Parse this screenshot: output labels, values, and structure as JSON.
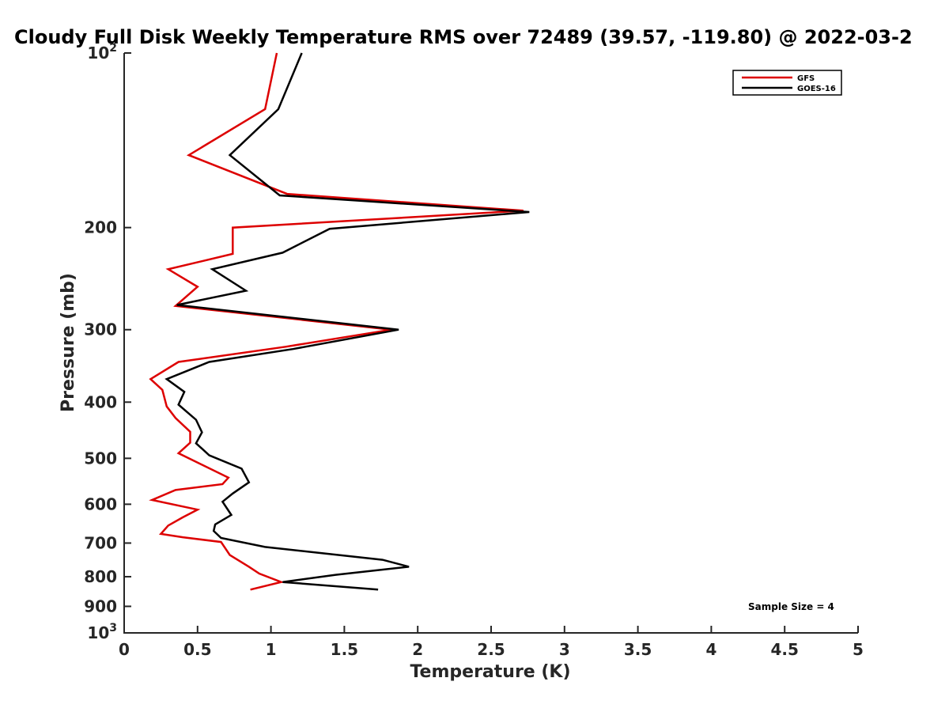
{
  "chart_data": {
    "type": "line",
    "title": "Cloudy Full Disk Weekly Temperature RMS over 72489 (39.57, -119.80) @ 2022-03-2",
    "xlabel": "Temperature (K)",
    "ylabel": "Pressure (mb)",
    "xlim": [
      0,
      5
    ],
    "ylim": [
      100,
      1000
    ],
    "y_scale": "log",
    "y_reversed": true,
    "x_ticks": [
      "0",
      "0.5",
      "1",
      "1.5",
      "2",
      "2.5",
      "3",
      "3.5",
      "4",
      "4.5",
      "5"
    ],
    "y_ticks": [
      {
        "value": 100,
        "label": "10",
        "sup": "2"
      },
      {
        "value": 200,
        "label": "200",
        "sup": ""
      },
      {
        "value": 300,
        "label": "300",
        "sup": ""
      },
      {
        "value": 400,
        "label": "400",
        "sup": ""
      },
      {
        "value": 500,
        "label": "500",
        "sup": ""
      },
      {
        "value": 600,
        "label": "600",
        "sup": ""
      },
      {
        "value": 700,
        "label": "700",
        "sup": ""
      },
      {
        "value": 800,
        "label": "800",
        "sup": ""
      },
      {
        "value": 900,
        "label": "900",
        "sup": ""
      },
      {
        "value": 1000,
        "label": "10",
        "sup": "3"
      }
    ],
    "grid": false,
    "legend_position": "top-right",
    "annotation": "Sample Size = 4",
    "series": [
      {
        "name": "GFS",
        "color": "#dd0000",
        "points": [
          [
            1.04,
            100
          ],
          [
            0.96,
            125
          ],
          [
            0.44,
            150
          ],
          [
            1.11,
            175
          ],
          [
            2.72,
            187
          ],
          [
            0.74,
            200
          ],
          [
            0.74,
            222
          ],
          [
            0.3,
            236
          ],
          [
            0.5,
            253
          ],
          [
            0.35,
            273
          ],
          [
            1.82,
            300
          ],
          [
            1.1,
            321
          ],
          [
            0.37,
            341
          ],
          [
            0.18,
            365
          ],
          [
            0.26,
            381
          ],
          [
            0.29,
            407
          ],
          [
            0.35,
            426
          ],
          [
            0.45,
            450
          ],
          [
            0.45,
            470
          ],
          [
            0.37,
            490
          ],
          [
            0.71,
            540
          ],
          [
            0.67,
            554
          ],
          [
            0.35,
            567
          ],
          [
            0.19,
            590
          ],
          [
            0.5,
            613
          ],
          [
            0.4,
            632
          ],
          [
            0.3,
            653
          ],
          [
            0.25,
            675
          ],
          [
            0.4,
            684
          ],
          [
            0.66,
            697
          ],
          [
            0.72,
            734
          ],
          [
            0.85,
            769
          ],
          [
            0.92,
            790
          ],
          [
            1.07,
            817
          ],
          [
            0.86,
            842
          ]
        ]
      },
      {
        "name": "GOES-16",
        "color": "#000000",
        "points": [
          [
            1.21,
            100
          ],
          [
            1.05,
            125
          ],
          [
            0.72,
            150
          ],
          [
            1.06,
            176
          ],
          [
            2.76,
            188
          ],
          [
            1.4,
            201
          ],
          [
            1.08,
            221
          ],
          [
            0.6,
            236
          ],
          [
            0.83,
            257
          ],
          [
            0.36,
            272
          ],
          [
            1.87,
            300
          ],
          [
            1.15,
            324
          ],
          [
            0.58,
            341
          ],
          [
            0.29,
            365
          ],
          [
            0.41,
            384
          ],
          [
            0.37,
            404
          ],
          [
            0.49,
            429
          ],
          [
            0.53,
            451
          ],
          [
            0.49,
            471
          ],
          [
            0.58,
            494
          ],
          [
            0.8,
            521
          ],
          [
            0.85,
            550
          ],
          [
            0.74,
            575
          ],
          [
            0.67,
            594
          ],
          [
            0.73,
            626
          ],
          [
            0.62,
            650
          ],
          [
            0.61,
            667
          ],
          [
            0.66,
            686
          ],
          [
            0.96,
            711
          ],
          [
            1.76,
            748
          ],
          [
            1.94,
            769
          ],
          [
            1.44,
            794
          ],
          [
            1.08,
            817
          ],
          [
            1.73,
            842
          ]
        ]
      }
    ]
  }
}
